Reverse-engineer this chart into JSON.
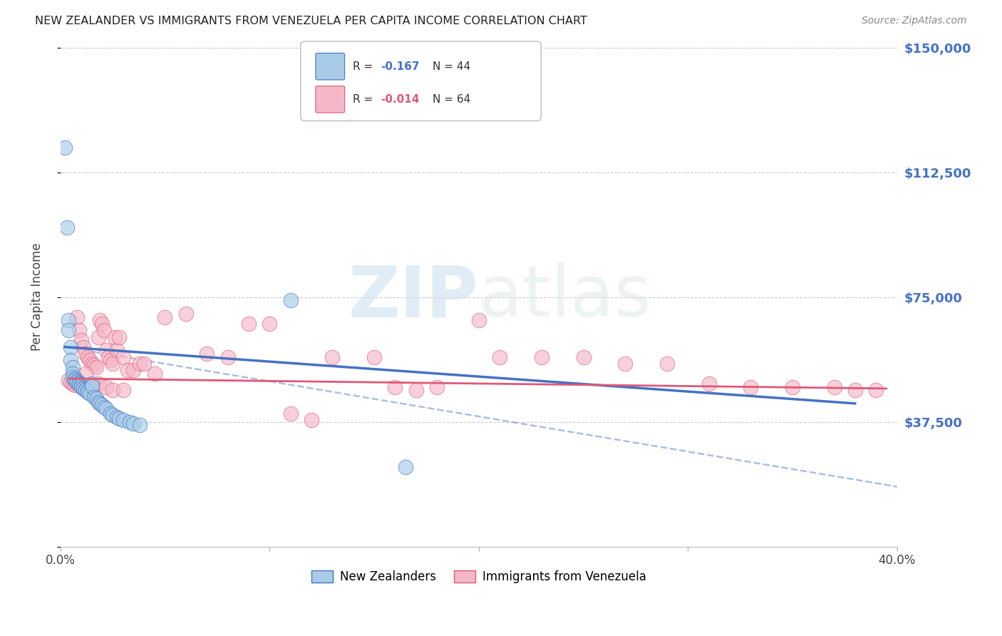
{
  "title": "NEW ZEALANDER VS IMMIGRANTS FROM VENEZUELA PER CAPITA INCOME CORRELATION CHART",
  "source": "Source: ZipAtlas.com",
  "ylabel": "Per Capita Income",
  "xlim": [
    0.0,
    0.4
  ],
  "ylim": [
    0,
    150000
  ],
  "yticks": [
    0,
    37500,
    75000,
    112500,
    150000
  ],
  "ytick_labels": [
    "",
    "$37,500",
    "$75,000",
    "$112,500",
    "$150,000"
  ],
  "xticks": [
    0.0,
    0.1,
    0.2,
    0.3,
    0.4
  ],
  "xtick_labels": [
    "0.0%",
    "",
    "",
    "",
    "40.0%"
  ],
  "color_blue": "#a8cce8",
  "color_pink": "#f5b8c8",
  "color_line_blue": "#4472c4",
  "color_line_pink": "#e05878",
  "color_axis_right": "#4472c4",
  "watermark_zip": "ZIP",
  "watermark_atlas": "atlas",
  "blue_scatter_x": [
    0.002,
    0.003,
    0.004,
    0.004,
    0.005,
    0.005,
    0.006,
    0.006,
    0.006,
    0.007,
    0.007,
    0.008,
    0.008,
    0.009,
    0.009,
    0.01,
    0.01,
    0.01,
    0.011,
    0.011,
    0.012,
    0.012,
    0.013,
    0.013,
    0.014,
    0.015,
    0.015,
    0.016,
    0.017,
    0.018,
    0.019,
    0.02,
    0.021,
    0.022,
    0.024,
    0.025,
    0.027,
    0.028,
    0.03,
    0.033,
    0.035,
    0.038,
    0.11,
    0.165
  ],
  "blue_scatter_y": [
    120000,
    96000,
    68000,
    65000,
    60000,
    56000,
    54000,
    52000,
    51000,
    50500,
    50000,
    49800,
    49500,
    49200,
    49000,
    48800,
    48500,
    48000,
    47800,
    47500,
    47200,
    47000,
    46800,
    46500,
    46000,
    49000,
    48200,
    45000,
    44500,
    43500,
    43000,
    42500,
    42000,
    41500,
    40000,
    39500,
    39000,
    38500,
    38000,
    37500,
    37000,
    36500,
    74000,
    24000
  ],
  "pink_scatter_x": [
    0.004,
    0.005,
    0.006,
    0.007,
    0.008,
    0.009,
    0.01,
    0.011,
    0.012,
    0.013,
    0.014,
    0.015,
    0.016,
    0.017,
    0.018,
    0.019,
    0.02,
    0.021,
    0.022,
    0.023,
    0.024,
    0.025,
    0.026,
    0.027,
    0.028,
    0.03,
    0.032,
    0.035,
    0.038,
    0.04,
    0.045,
    0.05,
    0.06,
    0.07,
    0.08,
    0.09,
    0.1,
    0.11,
    0.12,
    0.13,
    0.15,
    0.16,
    0.17,
    0.18,
    0.2,
    0.21,
    0.23,
    0.25,
    0.27,
    0.29,
    0.31,
    0.33,
    0.35,
    0.37,
    0.38,
    0.39,
    0.008,
    0.01,
    0.012,
    0.015,
    0.018,
    0.022,
    0.025,
    0.03
  ],
  "pink_scatter_y": [
    50000,
    49500,
    49000,
    48500,
    69000,
    65000,
    62000,
    60000,
    58000,
    57000,
    56000,
    55000,
    54500,
    54000,
    63000,
    68000,
    67000,
    65000,
    59000,
    57000,
    56000,
    55000,
    63000,
    59000,
    63000,
    57000,
    53000,
    53000,
    55000,
    55000,
    52000,
    69000,
    70000,
    58000,
    57000,
    67000,
    67000,
    40000,
    38000,
    57000,
    57000,
    48000,
    47000,
    48000,
    68000,
    57000,
    57000,
    57000,
    55000,
    55000,
    49000,
    48000,
    48000,
    48000,
    47000,
    47000,
    49000,
    48500,
    52000,
    48000,
    49000,
    48000,
    47000,
    47000
  ],
  "blue_line_x": [
    0.002,
    0.38
  ],
  "blue_line_y": [
    60000,
    43000
  ],
  "pink_line_x": [
    0.004,
    0.395
  ],
  "pink_line_y": [
    50500,
    47500
  ],
  "dash_line_x": [
    0.002,
    0.4
  ],
  "dash_line_y": [
    60000,
    18000
  ]
}
